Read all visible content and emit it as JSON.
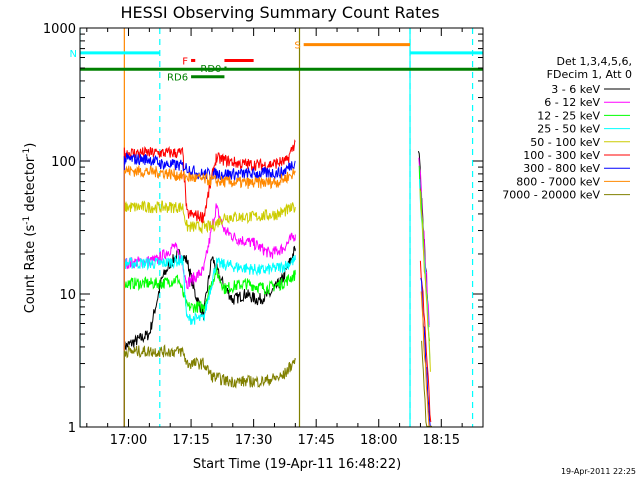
{
  "chart_data": {
    "type": "line",
    "title": "HESSI Observing Summary Count Rates",
    "xlabel": "Start Time (19-Apr-11 16:48:22)",
    "ylabel_main": "Count Rate (s",
    "ylabel_sup1": "-1",
    "ylabel_mid": " detector",
    "ylabel_sup2": "-1",
    "ylabel_end": ")",
    "yscale": "log",
    "ylim": [
      1,
      1000
    ],
    "xlim": [
      "16:48:22",
      "18:25:00"
    ],
    "y_ticks": [
      {
        "value": 1,
        "label": "1"
      },
      {
        "value": 10,
        "label": "10"
      },
      {
        "value": 100,
        "label": "100"
      },
      {
        "value": 1000,
        "label": "1000"
      }
    ],
    "x_ticks": [
      {
        "t": "17:00",
        "label": "17:00"
      },
      {
        "t": "17:15",
        "label": "17:15"
      },
      {
        "t": "17:30",
        "label": "17:30"
      },
      {
        "t": "17:45",
        "label": "17:45"
      },
      {
        "t": "18:00",
        "label": "18:00"
      },
      {
        "t": "18:15",
        "label": "18:15"
      }
    ],
    "legend_header": [
      "Det 1,3,4,5,6,",
      "FDecim 1, Att 0"
    ],
    "legend_position": "right",
    "series": [
      {
        "name": "3 - 6 keV",
        "color": "#000000",
        "points": [
          [
            "16:59:00",
            4
          ],
          [
            "17:05:00",
            5
          ],
          [
            "17:08:00",
            13
          ],
          [
            "17:10:00",
            17
          ],
          [
            "17:12:00",
            20
          ],
          [
            "17:14:00",
            18
          ],
          [
            "17:16:00",
            10
          ],
          [
            "17:18:00",
            7
          ],
          [
            "17:20:00",
            19
          ],
          [
            "17:22:00",
            13
          ],
          [
            "17:25:00",
            9
          ],
          [
            "17:28:00",
            10
          ],
          [
            "17:31:00",
            9
          ],
          [
            "17:34:00",
            10
          ],
          [
            "17:37:00",
            13
          ],
          [
            "17:40:00",
            22
          ]
        ]
      },
      {
        "name": "6 - 12 keV",
        "color": "#ff00ff",
        "points": [
          [
            "16:59:00",
            17
          ],
          [
            "17:07:00",
            18
          ],
          [
            "17:11:00",
            23
          ],
          [
            "17:13:00",
            17
          ],
          [
            "17:14:00",
            12
          ],
          [
            "17:18:00",
            15
          ],
          [
            "17:21:00",
            45
          ],
          [
            "17:23:00",
            30
          ],
          [
            "17:26:00",
            26
          ],
          [
            "17:30:00",
            24
          ],
          [
            "17:34:00",
            20
          ],
          [
            "17:37:00",
            22
          ],
          [
            "17:40:00",
            28
          ]
        ]
      },
      {
        "name": "12 - 25 keV",
        "color": "#00ff00",
        "points": [
          [
            "16:59:00",
            12
          ],
          [
            "17:08:00",
            12
          ],
          [
            "17:12:00",
            13
          ],
          [
            "17:14:00",
            8
          ],
          [
            "17:18:00",
            8
          ],
          [
            "17:21:00",
            15
          ],
          [
            "17:23:00",
            11
          ],
          [
            "17:28:00",
            12
          ],
          [
            "17:33:00",
            11
          ],
          [
            "17:37:00",
            12
          ],
          [
            "17:40:00",
            14
          ]
        ]
      },
      {
        "name": "25 - 50 keV",
        "color": "#00ffff",
        "points": [
          [
            "16:59:00",
            17
          ],
          [
            "17:08:00",
            17
          ],
          [
            "17:13:00",
            18
          ],
          [
            "17:14:00",
            6.5
          ],
          [
            "17:18:00",
            6.5
          ],
          [
            "17:21:00",
            17
          ],
          [
            "17:26:00",
            16
          ],
          [
            "17:32:00",
            15
          ],
          [
            "17:37:00",
            16
          ],
          [
            "17:40:00",
            18
          ]
        ]
      },
      {
        "name": "50 - 100 keV",
        "color": "#cccc00",
        "points": [
          [
            "16:59:00",
            45
          ],
          [
            "17:08:00",
            45
          ],
          [
            "17:13:00",
            45
          ],
          [
            "17:14:00",
            32
          ],
          [
            "17:20:00",
            32
          ],
          [
            "17:23:00",
            38
          ],
          [
            "17:30:00",
            38
          ],
          [
            "17:36:00",
            40
          ],
          [
            "17:40:00",
            45
          ]
        ]
      },
      {
        "name": "100 - 300 keV",
        "color": "#ff0000",
        "points": [
          [
            "16:59:00",
            115
          ],
          [
            "17:08:00",
            115
          ],
          [
            "17:13:00",
            115
          ],
          [
            "17:14:00",
            40
          ],
          [
            "17:18:00",
            38
          ],
          [
            "17:21:00",
            105
          ],
          [
            "17:27:00",
            95
          ],
          [
            "17:33:00",
            93
          ],
          [
            "17:38:00",
            100
          ],
          [
            "17:40:00",
            140
          ]
        ]
      },
      {
        "name": "300 - 800 keV",
        "color": "#0000ff",
        "points": [
          [
            "16:59:00",
            103
          ],
          [
            "17:05:00",
            103
          ],
          [
            "17:08:00",
            95
          ],
          [
            "17:13:00",
            92
          ],
          [
            "17:17:00",
            80
          ],
          [
            "17:24:00",
            80
          ],
          [
            "17:30:00",
            80
          ],
          [
            "17:37:00",
            82
          ],
          [
            "17:40:00",
            100
          ]
        ]
      },
      {
        "name": "800 - 7000 keV",
        "color": "#ff8800",
        "points": [
          [
            "16:59:00",
            85
          ],
          [
            "17:08:00",
            82
          ],
          [
            "17:15:00",
            75
          ],
          [
            "17:22:00",
            70
          ],
          [
            "17:30:00",
            68
          ],
          [
            "17:36:00",
            70
          ],
          [
            "17:40:00",
            82
          ]
        ]
      },
      {
        "name": "7000 - 20000 keV",
        "color": "#808000",
        "points": [
          [
            "16:59:00",
            3.7
          ],
          [
            "17:04:00",
            3.7
          ],
          [
            "17:13:00",
            3.7
          ],
          [
            "17:14:00",
            3.0
          ],
          [
            "17:18:00",
            3.0
          ],
          [
            "17:20:00",
            2.4
          ],
          [
            "17:24:00",
            2.2
          ],
          [
            "17:32:00",
            2.2
          ],
          [
            "17:37:00",
            2.4
          ],
          [
            "17:40:00",
            3.2
          ]
        ]
      }
    ],
    "segment2": {
      "t_start": "18:09:30",
      "t_end": "18:12:00",
      "values": [
        130,
        120,
        85,
        70,
        60,
        20,
        14,
        10,
        4
      ]
    },
    "flags": [
      {
        "label": "N",
        "color": "#00ffff",
        "y": 650,
        "segments": [
          [
            "16:48:22",
            "17:07:30"
          ],
          [
            "18:07:30",
            "18:25:00"
          ]
        ]
      },
      {
        "label": "F",
        "color": "#ff0000",
        "y": 570,
        "segments": [
          [
            "17:15:00",
            "17:16:00"
          ]
        ]
      },
      {
        "label": "",
        "color": "#ff0000",
        "y": 570,
        "segments": [
          [
            "17:23:00",
            "17:30:00"
          ]
        ]
      },
      {
        "label": "RD0",
        "color": "#008000",
        "y": 500,
        "segments": [
          [
            "17:23:00",
            "17:23:30"
          ]
        ]
      },
      {
        "label": "RD6",
        "color": "#008000",
        "y": 430,
        "segments": [
          [
            "17:15:00",
            "17:23:00"
          ]
        ]
      },
      {
        "label": "S",
        "color": "#ff8800",
        "y": 750,
        "segments": [
          [
            "17:42:00",
            "18:07:30"
          ]
        ]
      },
      {
        "label": "",
        "color": "#008000",
        "y": 490,
        "segments": [
          [
            "16:48:22",
            "18:25:00"
          ]
        ]
      }
    ],
    "vlines_dashed": [
      {
        "t": "17:07:30",
        "color": "#00ffff"
      },
      {
        "t": "18:07:30",
        "color": "#00ffff"
      },
      {
        "t": "18:22:30",
        "color": "#00ffff"
      }
    ],
    "vlines_solid": [
      {
        "t": "16:48:22",
        "color": "#00ffff"
      },
      {
        "t": "16:59:00",
        "color": "#ff8800"
      },
      {
        "t": "17:41:00",
        "color": "#808000"
      },
      {
        "t": "18:07:30",
        "color": "#00ffff"
      }
    ],
    "footer": "19-Apr-2011 22:25"
  }
}
